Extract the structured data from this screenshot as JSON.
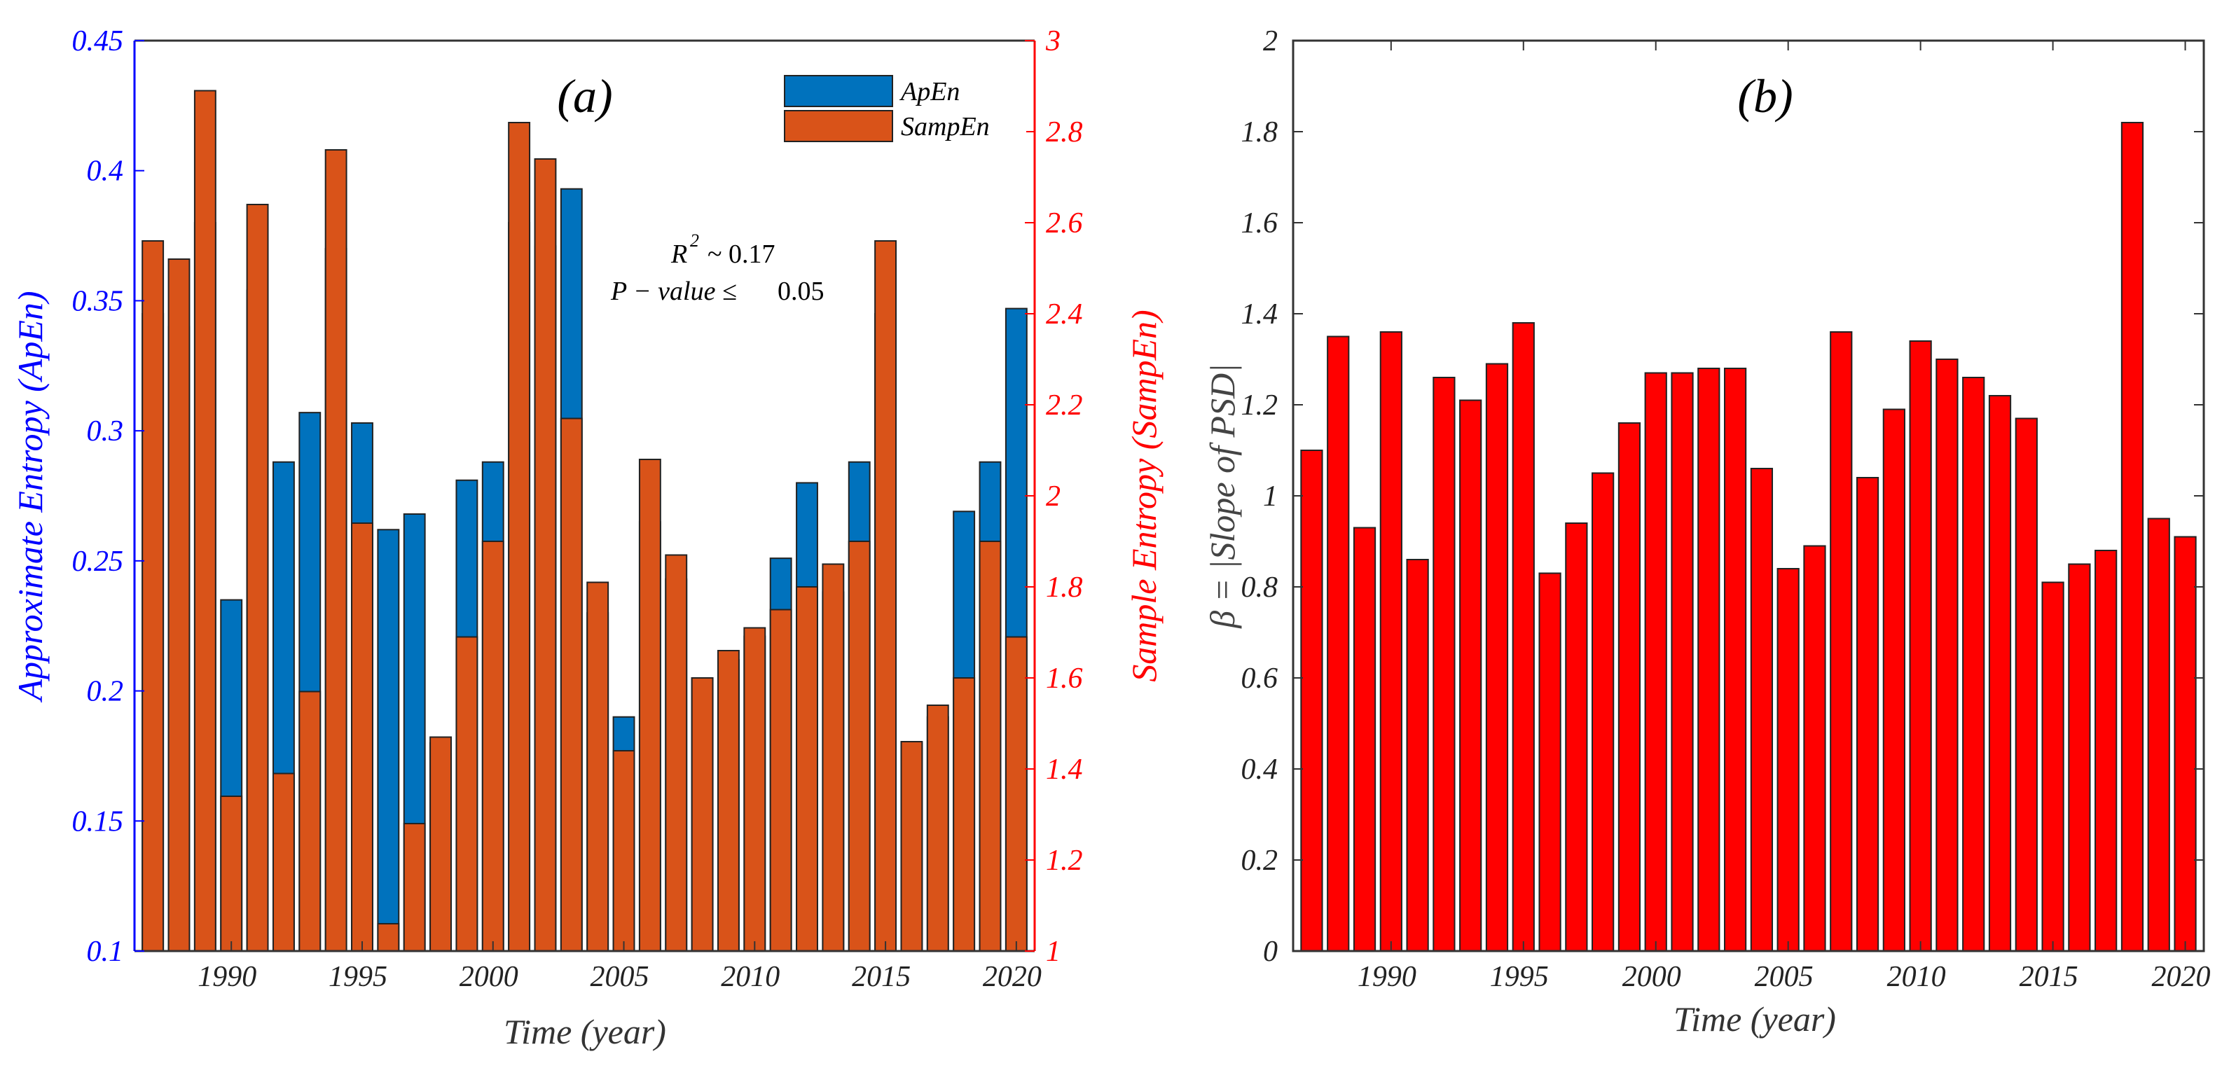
{
  "chart_data": [
    {
      "id": "panel-a",
      "type": "bar",
      "panel_label": "(a)",
      "xlabel": "Time (year)",
      "ylabel_left": "Approximate Entropy (ApEn)",
      "ylabel_right": "Sample Entropy (SampEn)",
      "left_color": "#0000ff",
      "right_color": "#ff0000",
      "ylim_left": [
        0.1,
        0.45
      ],
      "ylim_right": [
        1,
        3
      ],
      "xlim": [
        1986.3,
        2020.7
      ],
      "yticks_left": [
        0.1,
        0.15,
        0.2,
        0.25,
        0.3,
        0.35,
        0.4,
        0.45
      ],
      "ytick_labels_left": [
        "0.1",
        "0.15",
        "0.2",
        "0.25",
        "0.3",
        "0.35",
        "0.4",
        "0.45"
      ],
      "yticks_right": [
        1,
        1.2,
        1.4,
        1.6,
        1.8,
        2,
        2.2,
        2.4,
        2.6,
        2.8,
        3
      ],
      "ytick_labels_right": [
        "1",
        "1.2",
        "1.4",
        "1.6",
        "1.8",
        "2",
        "2.2",
        "2.4",
        "2.6",
        "2.8",
        "3"
      ],
      "xticks": [
        1990,
        1995,
        2000,
        2005,
        2010,
        2015,
        2020
      ],
      "xtick_labels": [
        "1990",
        "1995",
        "2000",
        "2005",
        "2010",
        "2015",
        "2020"
      ],
      "categories": [
        1987,
        1988,
        1989,
        1990,
        1991,
        1992,
        1993,
        1994,
        1995,
        1996,
        1997,
        1998,
        1999,
        2000,
        2001,
        2002,
        2003,
        2004,
        2005,
        2006,
        2007,
        2008,
        2009,
        2010,
        2011,
        2012,
        2013,
        2014,
        2015,
        2016,
        2017,
        2018,
        2019,
        2020
      ],
      "legend": {
        "position": "top-right",
        "entries": [
          "ApEn",
          "SampEn"
        ]
      },
      "series": [
        {
          "name": "ApEn",
          "axis": "left",
          "color": "#0072bd",
          "values": [
            0.345,
            0.34,
            0.38,
            0.235,
            0.354,
            0.288,
            0.307,
            0.37,
            0.303,
            0.262,
            0.268,
            0.18,
            0.281,
            0.288,
            0.38,
            0.371,
            0.393,
            0.23,
            0.19,
            0.265,
            0.243,
            0.205,
            0.212,
            0.221,
            0.251,
            0.28,
            0.238,
            0.288,
            0.345,
            0.18,
            0.19,
            0.269,
            0.288,
            0.347
          ]
        },
        {
          "name": "SampEn",
          "axis": "right",
          "color": "#d95319",
          "values": [
            2.56,
            2.52,
            2.89,
            1.34,
            2.64,
            1.39,
            1.57,
            2.76,
            1.94,
            1.06,
            1.28,
            1.47,
            1.69,
            1.9,
            2.82,
            2.74,
            2.17,
            1.81,
            1.44,
            2.08,
            1.87,
            1.6,
            1.66,
            1.71,
            1.75,
            1.8,
            1.85,
            1.9,
            2.56,
            1.46,
            1.54,
            1.6,
            1.9,
            1.69
          ]
        }
      ],
      "annotations": {
        "r2_label": "R",
        "r2_exp": "2",
        "r2_value": "~ 0.17",
        "p_label": "P − value ≤",
        "p_value": "0.05"
      }
    },
    {
      "id": "panel-b",
      "type": "bar",
      "panel_label": "(b)",
      "xlabel": "Time (year)",
      "ylabel": "β = |Slope of PSD|",
      "ylim": [
        0,
        2
      ],
      "xlim": [
        1986.3,
        2020.7
      ],
      "yticks": [
        0,
        0.2,
        0.4,
        0.6,
        0.8,
        1,
        1.2,
        1.4,
        1.6,
        1.8,
        2
      ],
      "ytick_labels": [
        "0",
        "0.2",
        "0.4",
        "0.6",
        "0.8",
        "1",
        "1.2",
        "1.4",
        "1.6",
        "1.8",
        "2"
      ],
      "xticks": [
        1990,
        1995,
        2000,
        2005,
        2010,
        2015,
        2020
      ],
      "xtick_labels": [
        "1990",
        "1995",
        "2000",
        "2005",
        "2010",
        "2015",
        "2020"
      ],
      "categories": [
        1987,
        1988,
        1989,
        1990,
        1991,
        1992,
        1993,
        1994,
        1995,
        1996,
        1997,
        1998,
        1999,
        2000,
        2001,
        2002,
        2003,
        2004,
        2005,
        2006,
        2007,
        2008,
        2009,
        2010,
        2011,
        2012,
        2013,
        2014,
        2015,
        2016,
        2017,
        2018,
        2019,
        2020
      ],
      "series": [
        {
          "name": "β",
          "color": "#ff0000",
          "values": [
            1.1,
            1.35,
            0.93,
            1.36,
            0.86,
            1.26,
            1.21,
            1.29,
            1.38,
            0.83,
            0.94,
            1.05,
            1.16,
            1.27,
            1.27,
            1.28,
            1.28,
            1.06,
            0.84,
            0.89,
            1.36,
            1.04,
            1.19,
            1.34,
            1.3,
            1.26,
            1.22,
            1.17,
            0.81,
            0.85,
            0.88,
            1.82,
            0.95,
            0.91
          ]
        }
      ]
    }
  ]
}
